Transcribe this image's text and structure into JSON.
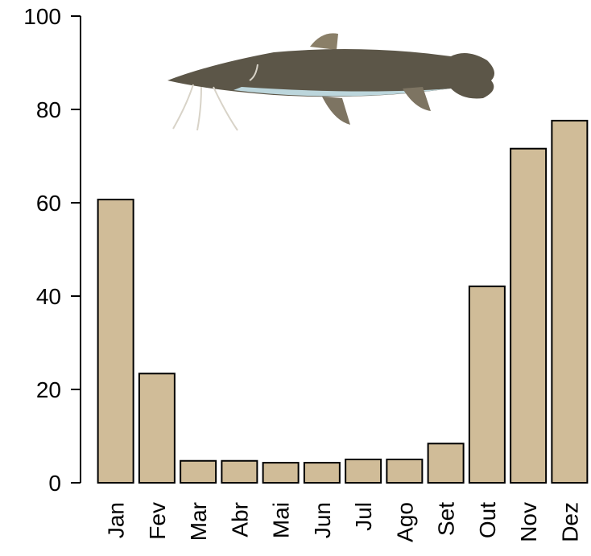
{
  "chart_data": {
    "type": "bar",
    "categories": [
      "Jan",
      "Fev",
      "Mar",
      "Abr",
      "Mai",
      "Jun",
      "Jul",
      "Ago",
      "Set",
      "Out",
      "Nov",
      "Dez"
    ],
    "values": [
      60.7,
      23.4,
      4.7,
      4.7,
      4.3,
      4.3,
      5.0,
      5.0,
      8.4,
      42.1,
      71.6,
      77.6
    ],
    "color": "#d0bc98",
    "ylim": [
      0,
      100
    ],
    "yticks": [
      0,
      20,
      40,
      60,
      80,
      100
    ]
  }
}
